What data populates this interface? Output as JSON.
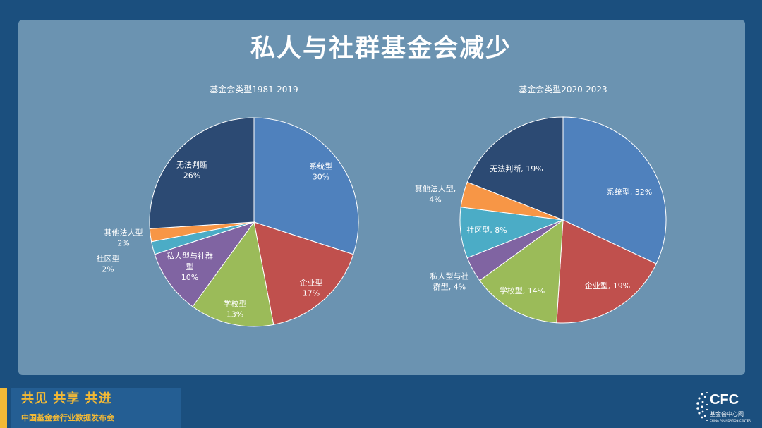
{
  "title": "私人与社群基金会减少",
  "footer": {
    "slogan": "共见 共享 共进",
    "subtitle": "中国基金会行业数据发布会"
  },
  "logo": {
    "text": "CFC",
    "sub": "基金会中心网",
    "tiny": "CHINA FOUNDATION CENTER",
    "icon": "dot-globe-icon"
  },
  "colors": {
    "page_bg": "#1b4f7e",
    "panel_bg": "#6b93b1",
    "accent": "#f2b936",
    "slices": [
      "#4f81bd",
      "#c0504d",
      "#9bbb59",
      "#8064a2",
      "#4bacc6",
      "#f79646",
      "#2c4a73"
    ]
  },
  "chart_data": [
    {
      "type": "pie",
      "title": "基金会类型1981-2019",
      "categories": [
        "系统型",
        "企业型",
        "学校型",
        "私人型与社群型",
        "社区型",
        "其他法人型",
        "无法判断"
      ],
      "values": [
        30,
        17,
        13,
        10,
        2,
        2,
        26
      ],
      "labels": [
        [
          "系统型",
          "30%"
        ],
        [
          "企业型",
          "17%"
        ],
        [
          "学校型",
          "13%"
        ],
        [
          "私人型与社群",
          "型",
          "10%"
        ],
        [
          "社区型",
          "2%"
        ],
        [
          "其他法人型",
          "2%"
        ],
        [
          "无法判断",
          "26%"
        ]
      ]
    },
    {
      "type": "pie",
      "title": "基金会类型2020-2023",
      "categories": [
        "系统型",
        "企业型",
        "学校型",
        "私人型与社群型",
        "社区型",
        "其他法人型",
        "无法判断"
      ],
      "values": [
        32,
        19,
        14,
        4,
        8,
        4,
        19
      ],
      "labels": [
        [
          "系统型, 32%"
        ],
        [
          "企业型, 19%"
        ],
        [
          "学校型, 14%"
        ],
        [
          "私人型与社",
          "群型, 4%"
        ],
        [
          "社区型, 8%"
        ],
        [
          "其他法人型,",
          "4%"
        ],
        [
          "无法判断, 19%"
        ]
      ]
    }
  ]
}
